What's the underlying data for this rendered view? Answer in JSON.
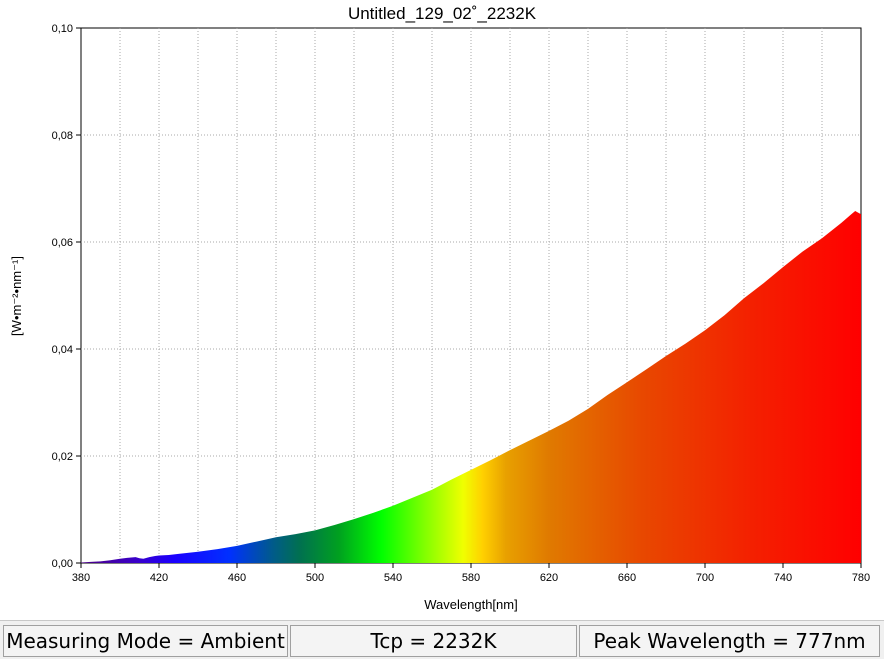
{
  "chart_data": {
    "type": "area",
    "title": "Untitled_129_02˚_2232K",
    "xlabel": "Wavelength[nm]",
    "ylabel": "[W•m⁻²•nm⁻¹]",
    "xlim": [
      380,
      780
    ],
    "ylim": [
      0,
      0.1
    ],
    "xticks": [
      "380",
      "420",
      "460",
      "500",
      "540",
      "580",
      "620",
      "660",
      "700",
      "740",
      "780"
    ],
    "yticks": [
      "0,00",
      "0,02",
      "0,04",
      "0,06",
      "0,08",
      "0,10"
    ],
    "grid": true,
    "fill": "visible-spectrum gradient",
    "series": [
      {
        "x": [
          380,
          385,
          390,
          395,
          400,
          405,
          408,
          410,
          412,
          415,
          418,
          420,
          425,
          430,
          440,
          450,
          460,
          470,
          480,
          490,
          500,
          510,
          520,
          530,
          540,
          550,
          560,
          570,
          580,
          590,
          600,
          610,
          620,
          630,
          640,
          650,
          660,
          670,
          680,
          690,
          700,
          710,
          720,
          730,
          740,
          750,
          760,
          770,
          775,
          777,
          780
        ],
        "y": [
          0.0001,
          0.0002,
          0.0003,
          0.0005,
          0.0008,
          0.001,
          0.0011,
          0.0009,
          0.0008,
          0.0011,
          0.0013,
          0.0014,
          0.0015,
          0.0017,
          0.0021,
          0.0026,
          0.0032,
          0.004,
          0.0048,
          0.0054,
          0.0061,
          0.0071,
          0.0082,
          0.0094,
          0.0107,
          0.0122,
          0.0137,
          0.0156,
          0.0174,
          0.0192,
          0.0211,
          0.0229,
          0.0247,
          0.0266,
          0.0288,
          0.0314,
          0.0338,
          0.0362,
          0.0387,
          0.041,
          0.0435,
          0.0463,
          0.0495,
          0.0523,
          0.0553,
          0.0582,
          0.0607,
          0.0636,
          0.0652,
          0.0658,
          0.0652
        ]
      }
    ]
  },
  "status": {
    "mode": "Measuring Mode = Ambient",
    "tcp": "Tcp = 2232K",
    "peak": "Peak Wavelength = 777nm"
  }
}
